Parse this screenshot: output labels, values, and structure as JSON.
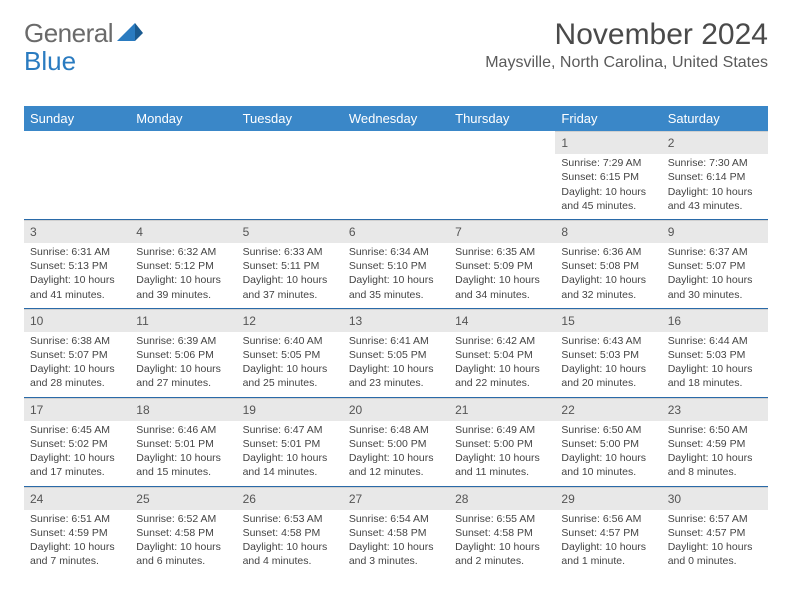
{
  "logo": {
    "text1": "General",
    "text2": "Blue"
  },
  "title": "November 2024",
  "location": "Maysville, North Carolina, United States",
  "colors": {
    "header_bg": "#3a87c8",
    "header_text": "#ffffff",
    "daynum_bg": "#e8e8e8",
    "row_border": "#2a6aa8",
    "text": "#444444",
    "title_color": "#4a4a4a",
    "logo_gray": "#6a6a6a",
    "logo_blue": "#2a7bc0"
  },
  "day_headers": [
    "Sunday",
    "Monday",
    "Tuesday",
    "Wednesday",
    "Thursday",
    "Friday",
    "Saturday"
  ],
  "weeks": [
    [
      {
        "empty": true
      },
      {
        "empty": true
      },
      {
        "empty": true
      },
      {
        "empty": true
      },
      {
        "empty": true
      },
      {
        "n": "1",
        "sunrise": "Sunrise: 7:29 AM",
        "sunset": "Sunset: 6:15 PM",
        "daylight": "Daylight: 10 hours and 45 minutes."
      },
      {
        "n": "2",
        "sunrise": "Sunrise: 7:30 AM",
        "sunset": "Sunset: 6:14 PM",
        "daylight": "Daylight: 10 hours and 43 minutes."
      }
    ],
    [
      {
        "n": "3",
        "sunrise": "Sunrise: 6:31 AM",
        "sunset": "Sunset: 5:13 PM",
        "daylight": "Daylight: 10 hours and 41 minutes."
      },
      {
        "n": "4",
        "sunrise": "Sunrise: 6:32 AM",
        "sunset": "Sunset: 5:12 PM",
        "daylight": "Daylight: 10 hours and 39 minutes."
      },
      {
        "n": "5",
        "sunrise": "Sunrise: 6:33 AM",
        "sunset": "Sunset: 5:11 PM",
        "daylight": "Daylight: 10 hours and 37 minutes."
      },
      {
        "n": "6",
        "sunrise": "Sunrise: 6:34 AM",
        "sunset": "Sunset: 5:10 PM",
        "daylight": "Daylight: 10 hours and 35 minutes."
      },
      {
        "n": "7",
        "sunrise": "Sunrise: 6:35 AM",
        "sunset": "Sunset: 5:09 PM",
        "daylight": "Daylight: 10 hours and 34 minutes."
      },
      {
        "n": "8",
        "sunrise": "Sunrise: 6:36 AM",
        "sunset": "Sunset: 5:08 PM",
        "daylight": "Daylight: 10 hours and 32 minutes."
      },
      {
        "n": "9",
        "sunrise": "Sunrise: 6:37 AM",
        "sunset": "Sunset: 5:07 PM",
        "daylight": "Daylight: 10 hours and 30 minutes."
      }
    ],
    [
      {
        "n": "10",
        "sunrise": "Sunrise: 6:38 AM",
        "sunset": "Sunset: 5:07 PM",
        "daylight": "Daylight: 10 hours and 28 minutes."
      },
      {
        "n": "11",
        "sunrise": "Sunrise: 6:39 AM",
        "sunset": "Sunset: 5:06 PM",
        "daylight": "Daylight: 10 hours and 27 minutes."
      },
      {
        "n": "12",
        "sunrise": "Sunrise: 6:40 AM",
        "sunset": "Sunset: 5:05 PM",
        "daylight": "Daylight: 10 hours and 25 minutes."
      },
      {
        "n": "13",
        "sunrise": "Sunrise: 6:41 AM",
        "sunset": "Sunset: 5:05 PM",
        "daylight": "Daylight: 10 hours and 23 minutes."
      },
      {
        "n": "14",
        "sunrise": "Sunrise: 6:42 AM",
        "sunset": "Sunset: 5:04 PM",
        "daylight": "Daylight: 10 hours and 22 minutes."
      },
      {
        "n": "15",
        "sunrise": "Sunrise: 6:43 AM",
        "sunset": "Sunset: 5:03 PM",
        "daylight": "Daylight: 10 hours and 20 minutes."
      },
      {
        "n": "16",
        "sunrise": "Sunrise: 6:44 AM",
        "sunset": "Sunset: 5:03 PM",
        "daylight": "Daylight: 10 hours and 18 minutes."
      }
    ],
    [
      {
        "n": "17",
        "sunrise": "Sunrise: 6:45 AM",
        "sunset": "Sunset: 5:02 PM",
        "daylight": "Daylight: 10 hours and 17 minutes."
      },
      {
        "n": "18",
        "sunrise": "Sunrise: 6:46 AM",
        "sunset": "Sunset: 5:01 PM",
        "daylight": "Daylight: 10 hours and 15 minutes."
      },
      {
        "n": "19",
        "sunrise": "Sunrise: 6:47 AM",
        "sunset": "Sunset: 5:01 PM",
        "daylight": "Daylight: 10 hours and 14 minutes."
      },
      {
        "n": "20",
        "sunrise": "Sunrise: 6:48 AM",
        "sunset": "Sunset: 5:00 PM",
        "daylight": "Daylight: 10 hours and 12 minutes."
      },
      {
        "n": "21",
        "sunrise": "Sunrise: 6:49 AM",
        "sunset": "Sunset: 5:00 PM",
        "daylight": "Daylight: 10 hours and 11 minutes."
      },
      {
        "n": "22",
        "sunrise": "Sunrise: 6:50 AM",
        "sunset": "Sunset: 5:00 PM",
        "daylight": "Daylight: 10 hours and 10 minutes."
      },
      {
        "n": "23",
        "sunrise": "Sunrise: 6:50 AM",
        "sunset": "Sunset: 4:59 PM",
        "daylight": "Daylight: 10 hours and 8 minutes."
      }
    ],
    [
      {
        "n": "24",
        "sunrise": "Sunrise: 6:51 AM",
        "sunset": "Sunset: 4:59 PM",
        "daylight": "Daylight: 10 hours and 7 minutes."
      },
      {
        "n": "25",
        "sunrise": "Sunrise: 6:52 AM",
        "sunset": "Sunset: 4:58 PM",
        "daylight": "Daylight: 10 hours and 6 minutes."
      },
      {
        "n": "26",
        "sunrise": "Sunrise: 6:53 AM",
        "sunset": "Sunset: 4:58 PM",
        "daylight": "Daylight: 10 hours and 4 minutes."
      },
      {
        "n": "27",
        "sunrise": "Sunrise: 6:54 AM",
        "sunset": "Sunset: 4:58 PM",
        "daylight": "Daylight: 10 hours and 3 minutes."
      },
      {
        "n": "28",
        "sunrise": "Sunrise: 6:55 AM",
        "sunset": "Sunset: 4:58 PM",
        "daylight": "Daylight: 10 hours and 2 minutes."
      },
      {
        "n": "29",
        "sunrise": "Sunrise: 6:56 AM",
        "sunset": "Sunset: 4:57 PM",
        "daylight": "Daylight: 10 hours and 1 minute."
      },
      {
        "n": "30",
        "sunrise": "Sunrise: 6:57 AM",
        "sunset": "Sunset: 4:57 PM",
        "daylight": "Daylight: 10 hours and 0 minutes."
      }
    ]
  ]
}
